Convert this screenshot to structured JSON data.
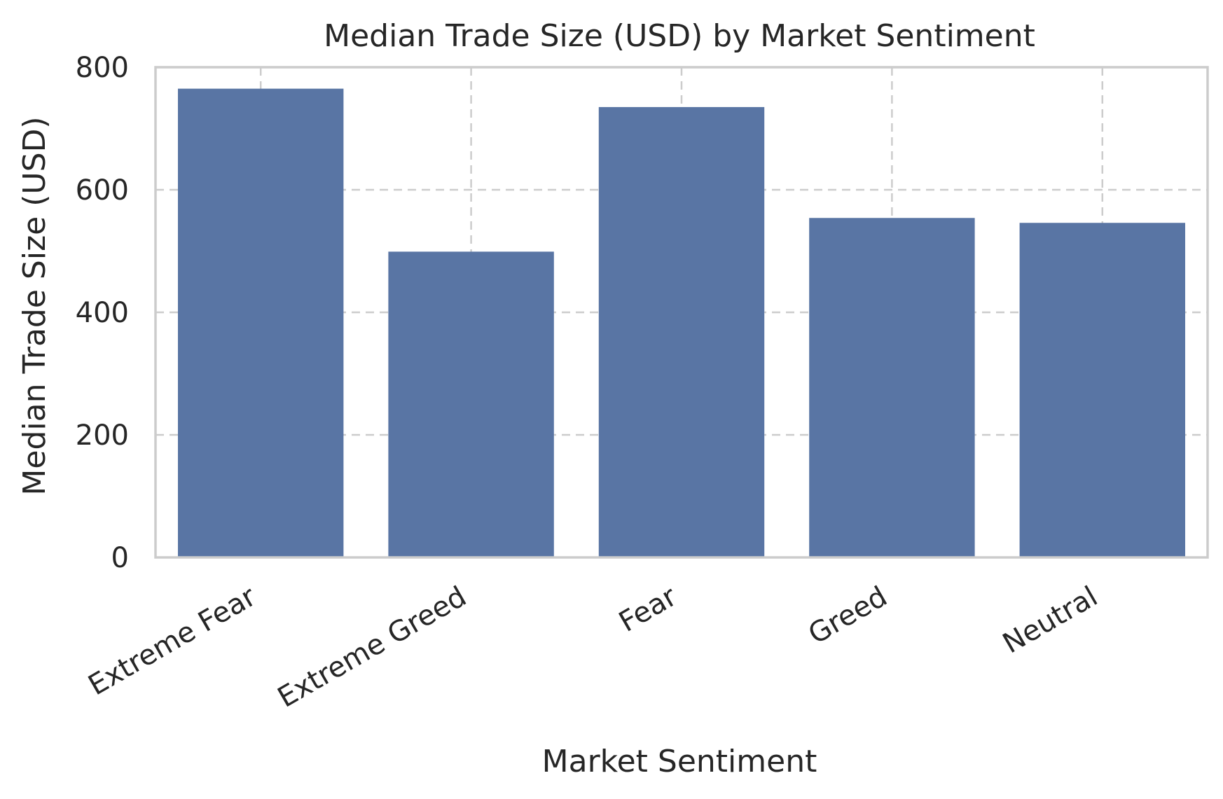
{
  "chart_data": {
    "type": "bar",
    "title": "Median Trade Size (USD) by Market Sentiment",
    "xlabel": "Market Sentiment",
    "ylabel": "Median Trade Size (USD)",
    "categories": [
      "Extreme Fear",
      "Extreme Greed",
      "Fear",
      "Greed",
      "Neutral"
    ],
    "values": [
      765,
      499,
      735,
      554,
      546
    ],
    "ylim": [
      0,
      800
    ],
    "yticks": [
      0,
      200,
      400,
      600,
      800
    ],
    "ytick_labels": [
      "0",
      "200",
      "400",
      "600",
      "800"
    ],
    "grid": true,
    "x_tick_rotation": 30,
    "colors": {
      "bar": "#5975a4",
      "grid": "#cccccc",
      "frame": "#cccccc",
      "text": "#262626",
      "background": "#ffffff"
    }
  }
}
